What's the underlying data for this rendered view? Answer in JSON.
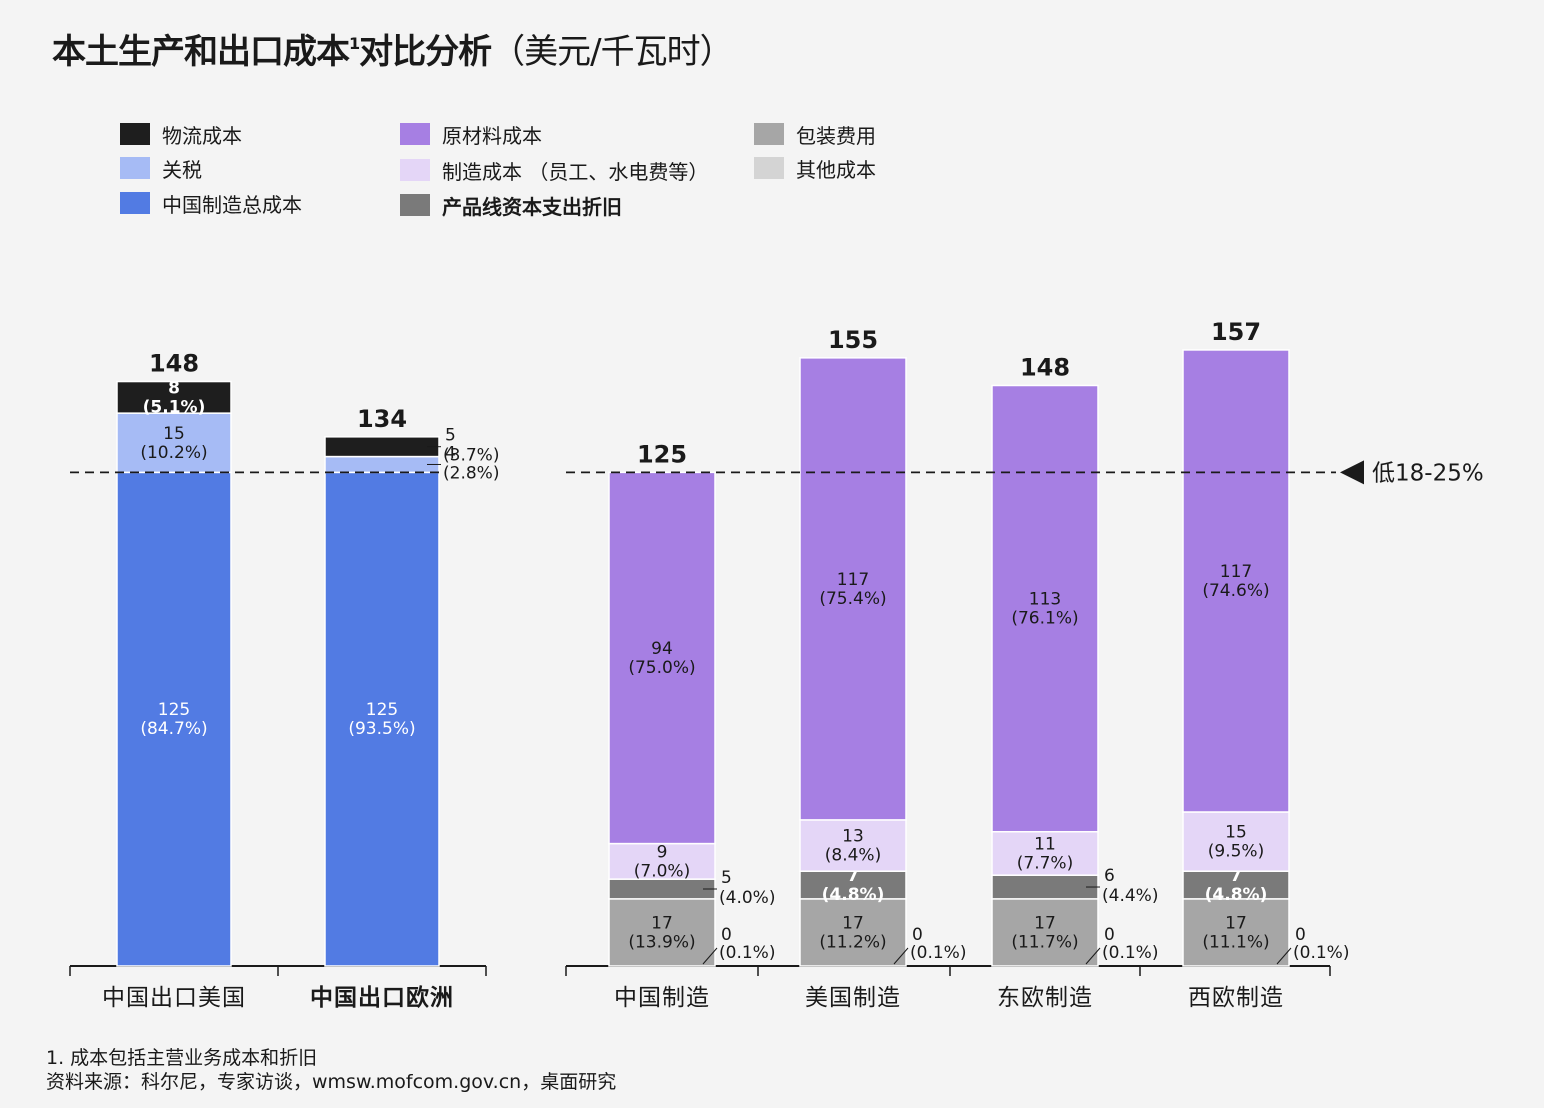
{
  "title": {
    "main": "本土生产和出口成本",
    "superscript": "1",
    "rest": "对比分析",
    "unit": "（美元/千瓦时）"
  },
  "legend": [
    {
      "key": "logistics",
      "label": "物流成本",
      "color": "#1e1e1e"
    },
    {
      "key": "tariff",
      "label": "关税",
      "color": "#a6bbf5"
    },
    {
      "key": "china_total",
      "label": "中国制造总成本",
      "color": "#527be3"
    },
    {
      "key": "raw",
      "label": "原材料成本",
      "color": "#a67fe3"
    },
    {
      "key": "mfg",
      "label": "制造成本 （员工、水电费等）",
      "color": "#e4d6f7"
    },
    {
      "key": "capex",
      "label": "产品线资本支出折旧",
      "color": "#7a7a7a"
    },
    {
      "key": "packaging",
      "label": "包装费用",
      "color": "#a6a6a6"
    },
    {
      "key": "other",
      "label": "其他成本",
      "color": "#d4d4d4"
    }
  ],
  "chart_data": [
    {
      "type": "bar",
      "stacked": true,
      "categories": [
        "中国出口美国",
        "中国出口欧洲"
      ],
      "series": [
        {
          "name": "中国制造总成本",
          "values": [
            125,
            125
          ],
          "labels": [
            "(84.7%)",
            "(93.5%)"
          ]
        },
        {
          "name": "关税",
          "values": [
            15,
            4
          ],
          "labels": [
            "(10.2%)",
            "(2.8%)"
          ]
        },
        {
          "name": "物流成本",
          "values": [
            8,
            5
          ],
          "labels": [
            "(5.1%)",
            "(3.7%)"
          ]
        }
      ],
      "totals": [
        148,
        134
      ],
      "ylim": [
        0,
        160
      ],
      "reference_line": 125
    },
    {
      "type": "bar",
      "stacked": true,
      "categories": [
        "中国制造",
        "美国制造",
        "东欧制造",
        "西欧制造"
      ],
      "series": [
        {
          "name": "其他成本",
          "values": [
            0,
            0,
            0,
            0
          ],
          "labels": [
            "(0.1%)",
            "(0.1%)",
            "(0.1%)",
            "(0.1%)"
          ]
        },
        {
          "name": "包装费用",
          "values": [
            17,
            17,
            17,
            17
          ],
          "labels": [
            "(13.9%)",
            "(11.2%)",
            "(11.7%)",
            "(11.1%)"
          ]
        },
        {
          "name": "产品线资本支出折旧",
          "values": [
            5,
            7,
            6,
            7
          ],
          "labels": [
            "(4.0%)",
            "(4.8%)",
            "(4.4%)",
            "(4.8%)"
          ]
        },
        {
          "name": "制造成本 （员工、水电费等）",
          "values": [
            9,
            13,
            11,
            15
          ],
          "labels": [
            "(7.0%)",
            "(8.4%)",
            "(7.7%)",
            "(9.5%)"
          ]
        },
        {
          "name": "原材料成本",
          "values": [
            94,
            117,
            113,
            117
          ],
          "labels": [
            "(75.0%)",
            "(75.4%)",
            "(76.1%)",
            "(74.6%)"
          ]
        }
      ],
      "totals": [
        125,
        155,
        148,
        157
      ],
      "ylim": [
        0,
        160
      ],
      "reference_line": 125,
      "reference_label": "低18-25%"
    }
  ],
  "footnotes": [
    "1. 成本包括主营业务成本和折旧",
    "资料来源：科尔尼，专家访谈，wmsw.mofcom.gov.cn，桌面研究"
  ]
}
